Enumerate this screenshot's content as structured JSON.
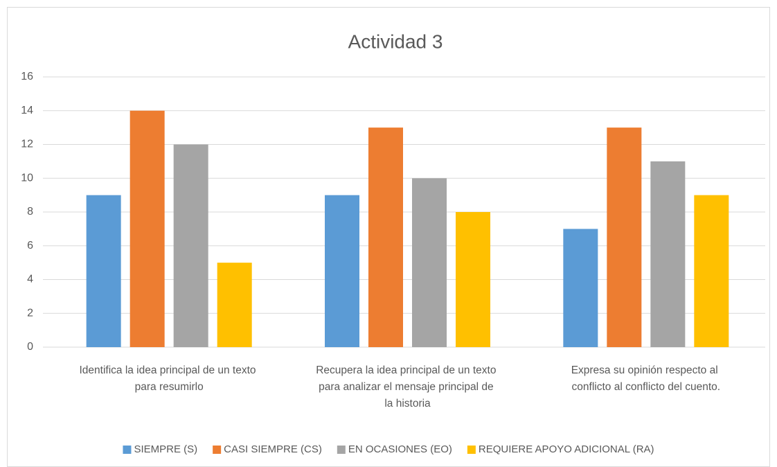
{
  "chart_data": {
    "type": "bar",
    "title": "Actividad 3",
    "categories": [
      "Identifica la idea principal de un texto para resumirlo",
      "Recupera la idea principal de un texto para analizar el mensaje principal de la historia",
      "Expresa su opinión respecto al conflicto al conflicto del cuento."
    ],
    "series": [
      {
        "name": "SIEMPRE (S)",
        "color": "#5b9bd5",
        "values": [
          9,
          9,
          7
        ]
      },
      {
        "name": "CASI SIEMPRE (CS)",
        "color": "#ed7d31",
        "values": [
          14,
          13,
          13
        ]
      },
      {
        "name": "EN OCASIONES (EO)",
        "color": "#a5a5a5",
        "values": [
          12,
          10,
          11
        ]
      },
      {
        "name": "REQUIERE APOYO ADICIONAL (RA)",
        "color": "#ffc000",
        "values": [
          5,
          8,
          9
        ]
      }
    ],
    "ylim": [
      0,
      16
    ],
    "yticks": [
      0,
      2,
      4,
      6,
      8,
      10,
      12,
      14,
      16
    ],
    "grid": true,
    "legend": "bottom"
  }
}
